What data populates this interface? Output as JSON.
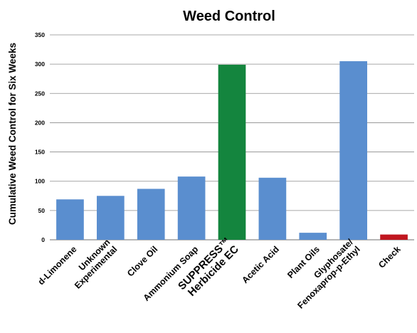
{
  "chart_data": {
    "type": "bar",
    "title": "Weed Control",
    "xlabel": "",
    "ylabel": "Cumulative Weed Control for Six Weeks",
    "ylim": [
      0,
      350
    ],
    "yticks": [
      0,
      50,
      100,
      150,
      200,
      250,
      300,
      350
    ],
    "grid": true,
    "legend": "none",
    "categories": [
      [
        "d-Limonene"
      ],
      [
        "Unknown",
        "Experimental"
      ],
      [
        "Clove Oil"
      ],
      [
        "Ammonium Soap"
      ],
      [
        "SUPPRESS™",
        "Herbicide EC"
      ],
      [
        "Acetic Acid"
      ],
      [
        "Plant Oils"
      ],
      [
        "Glyphosate/",
        "Fenoxaprop-p-Ethyl"
      ],
      [
        "Check"
      ]
    ],
    "values": [
      69,
      75,
      87,
      108,
      299,
      106,
      12,
      305,
      9
    ],
    "colors": [
      "#5a8ecf",
      "#5a8ecf",
      "#5a8ecf",
      "#5a8ecf",
      "#14853e",
      "#5a8ecf",
      "#5a8ecf",
      "#5a8ecf",
      "#c0161f"
    ],
    "label_colors": [
      "#000000",
      "#000000",
      "#000000",
      "#000000",
      "#3daa4a",
      "#000000",
      "#000000",
      "#000000",
      "#000000"
    ]
  }
}
